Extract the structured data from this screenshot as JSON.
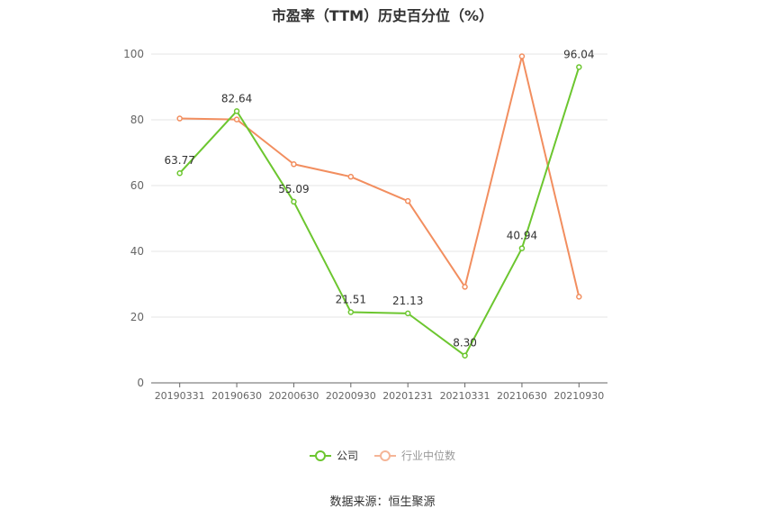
{
  "chart_data": {
    "type": "line",
    "title": "市盈率（TTM）历史百分位（%）",
    "categories": [
      "20190331",
      "20190630",
      "20200630",
      "20200930",
      "20201231",
      "20210331",
      "20210630",
      "20210930"
    ],
    "ylim": [
      0,
      100
    ],
    "yticks": [
      "0",
      "20",
      "40",
      "60",
      "80",
      "100"
    ],
    "grid": true,
    "legend_position": "bottom",
    "series": [
      {
        "name": "公司",
        "color": "#6cc62f",
        "values": [
          63.77,
          82.64,
          55.09,
          21.51,
          21.13,
          8.3,
          40.94,
          96.04
        ],
        "labels": [
          "63.77",
          "82.64",
          "55.09",
          "21.51",
          "21.13",
          "8.30",
          "40.94",
          "96.04"
        ]
      },
      {
        "name": "行业中位数",
        "color": "#f28e5f",
        "values": [
          80.4,
          80.1,
          66.5,
          62.7,
          55.3,
          29.2,
          99.3,
          26.2
        ]
      }
    ],
    "source": "数据来源：恒生聚源"
  }
}
